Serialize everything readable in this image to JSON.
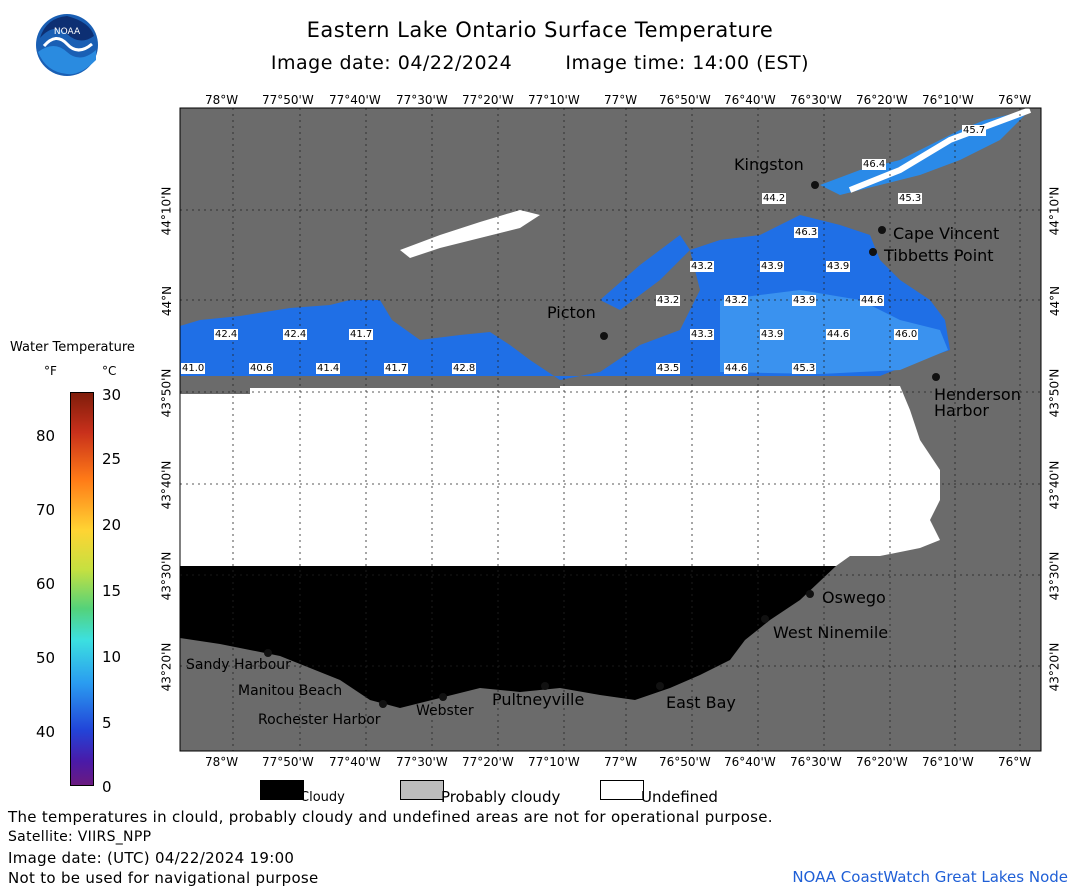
{
  "header": {
    "title": "Eastern Lake Ontario Surface Temperature",
    "subtitle_date": "Image date: 04/22/2024",
    "subtitle_time": "Image time: 14:00 (EST)"
  },
  "logo": {
    "text": "NOAA"
  },
  "legend": {
    "title": "Water Temperature",
    "unit_f": "°F",
    "unit_c": "°C",
    "f_ticks": [
      "80",
      "70",
      "60",
      "50",
      "40"
    ],
    "c_ticks": [
      "30",
      "25",
      "20",
      "15",
      "10",
      "5",
      "0"
    ]
  },
  "axes": {
    "lon_labels": [
      "78°W",
      "77°50'W",
      "77°40'W",
      "77°30'W",
      "77°20'W",
      "77°10'W",
      "77°W",
      "76°50'W",
      "76°40'W",
      "76°30'W",
      "76°20'W",
      "76°10'W",
      "76°W"
    ],
    "lat_labels": [
      "44°10'N",
      "44°N",
      "43°50'N",
      "43°40'N",
      "43°30'N",
      "43°20'N"
    ]
  },
  "places": [
    {
      "name": "Kingston"
    },
    {
      "name": "Cape Vincent"
    },
    {
      "name": "Tibbetts Point"
    },
    {
      "name": "Picton"
    },
    {
      "name": "Henderson Harbor"
    },
    {
      "name": "Oswego"
    },
    {
      "name": "West Ninemile"
    },
    {
      "name": "Sandy Harbour"
    },
    {
      "name": "Manitou Beach"
    },
    {
      "name": "Rochester Harbor"
    },
    {
      "name": "Webster"
    },
    {
      "name": "Pultneyville"
    },
    {
      "name": "East Bay"
    }
  ],
  "temperature_labels": [
    "45.7",
    "46.4",
    "45.3",
    "44.2",
    "46.3",
    "43.2",
    "43.9",
    "43.9",
    "44.6",
    "43.2",
    "43.2",
    "43.9",
    "42.4",
    "42.4",
    "41.7",
    "43.3",
    "43.9",
    "44.6",
    "46.0",
    "41.0",
    "40.6",
    "41.4",
    "41.7",
    "42.8",
    "43.5",
    "44.6",
    "45.3"
  ],
  "map_legend": {
    "cloudy": "Cloudy",
    "probably_cloudy": "Probably cloudy",
    "undefined": "Undefined"
  },
  "colors": {
    "land": "#6b6b6b",
    "water_cold": "#1f6fe6",
    "water_warm": "#3fa0f2",
    "cloud": "#000000",
    "prob_cloud": "#bdbdbd",
    "undefined": "#ffffff"
  },
  "footer": {
    "line1": "The temperatures in clould, probably cloudy and undefined areas are not for operational purpose.",
    "line2": "Satellite: VIIRS_NPP",
    "line3": "Image date: (UTC) 04/22/2024  19:00",
    "line4": "Not to be used for navigational purpose",
    "credit": "NOAA CoastWatch Great Lakes Node"
  }
}
